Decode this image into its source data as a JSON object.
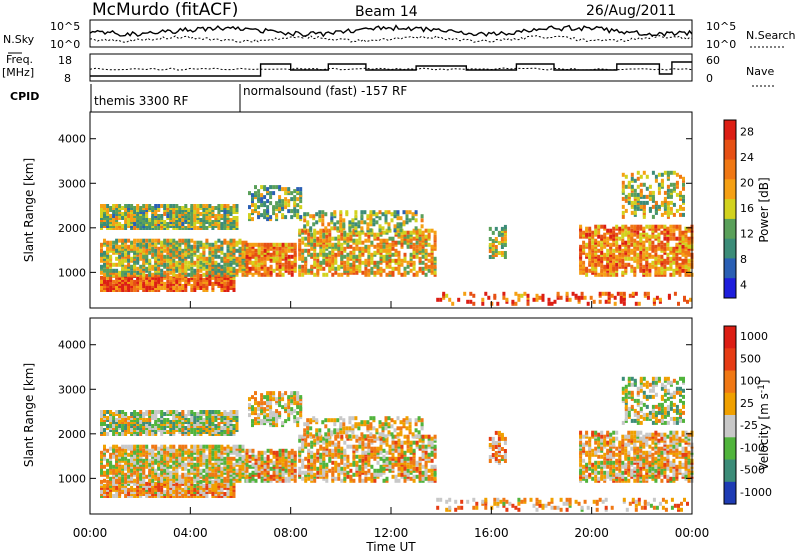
{
  "header": {
    "station": "McMurdo (fitACF)",
    "beam": "Beam 14",
    "date": "26/Aug/2011"
  },
  "top_panels": {
    "nsky_label": "N.Sky",
    "nsearch_label": "N.Search",
    "noise_ticks": [
      "10^5",
      "10^0"
    ],
    "freq_label": "Freq.",
    "freq_unit": "[MHz]",
    "freq_ticks": [
      "18",
      "8"
    ],
    "nave_label": "Nave",
    "nave_ticks": [
      "60",
      "0"
    ],
    "cpid_label": "CPID",
    "cpid_segments": [
      {
        "label": "themis 3300 RF",
        "start_hour": 0,
        "end_hour": 6
      },
      {
        "label": "normalsound (fast) -157 RF",
        "start_hour": 6,
        "end_hour": 24
      }
    ]
  },
  "colors": {
    "power_scale": [
      "#1e1edc",
      "#2a5fb4",
      "#3c8c78",
      "#5aa05a",
      "#d2d21e",
      "#f5a014",
      "#f07814",
      "#e65014",
      "#dc1e14"
    ],
    "velocity_scale": [
      "#1e3cb4",
      "#3c8c78",
      "#50b43c",
      "#c8c8c8",
      "#f0a000",
      "#f07814",
      "#e63c14",
      "#dc1e14"
    ]
  },
  "chart_data": [
    {
      "type": "heatmap",
      "name": "Power",
      "xlabel": "Time UT",
      "ylabel": "Slant Range [km]",
      "x_ticks": [
        "00:00",
        "04:00",
        "08:00",
        "12:00",
        "16:00",
        "20:00",
        "00:00"
      ],
      "x_range_hours": [
        0,
        24
      ],
      "ylim": [
        200,
        4600
      ],
      "y_ticks": [
        1000,
        2000,
        3000,
        4000
      ],
      "colorbar_label": "Power [dB]",
      "colorbar_ticks": [
        "28",
        "24",
        "20",
        "16",
        "12",
        "8",
        "4"
      ],
      "colorbar_range": [
        0,
        30
      ]
    },
    {
      "type": "heatmap",
      "name": "Velocity",
      "xlabel": "Time UT",
      "ylabel": "Slant Range [km]",
      "x_ticks": [
        "00:00",
        "04:00",
        "08:00",
        "12:00",
        "16:00",
        "20:00",
        "00:00"
      ],
      "x_range_hours": [
        0,
        24
      ],
      "ylim": [
        200,
        4600
      ],
      "y_ticks": [
        1000,
        2000,
        3000,
        4000
      ],
      "colorbar_label": "Velocity [m s",
      "colorbar_label_sup": "-1",
      "colorbar_label_end": "]",
      "colorbar_ticks": [
        "1000",
        "500",
        "100",
        "25",
        "-25",
        "-100",
        "-500",
        "-1000"
      ]
    }
  ]
}
